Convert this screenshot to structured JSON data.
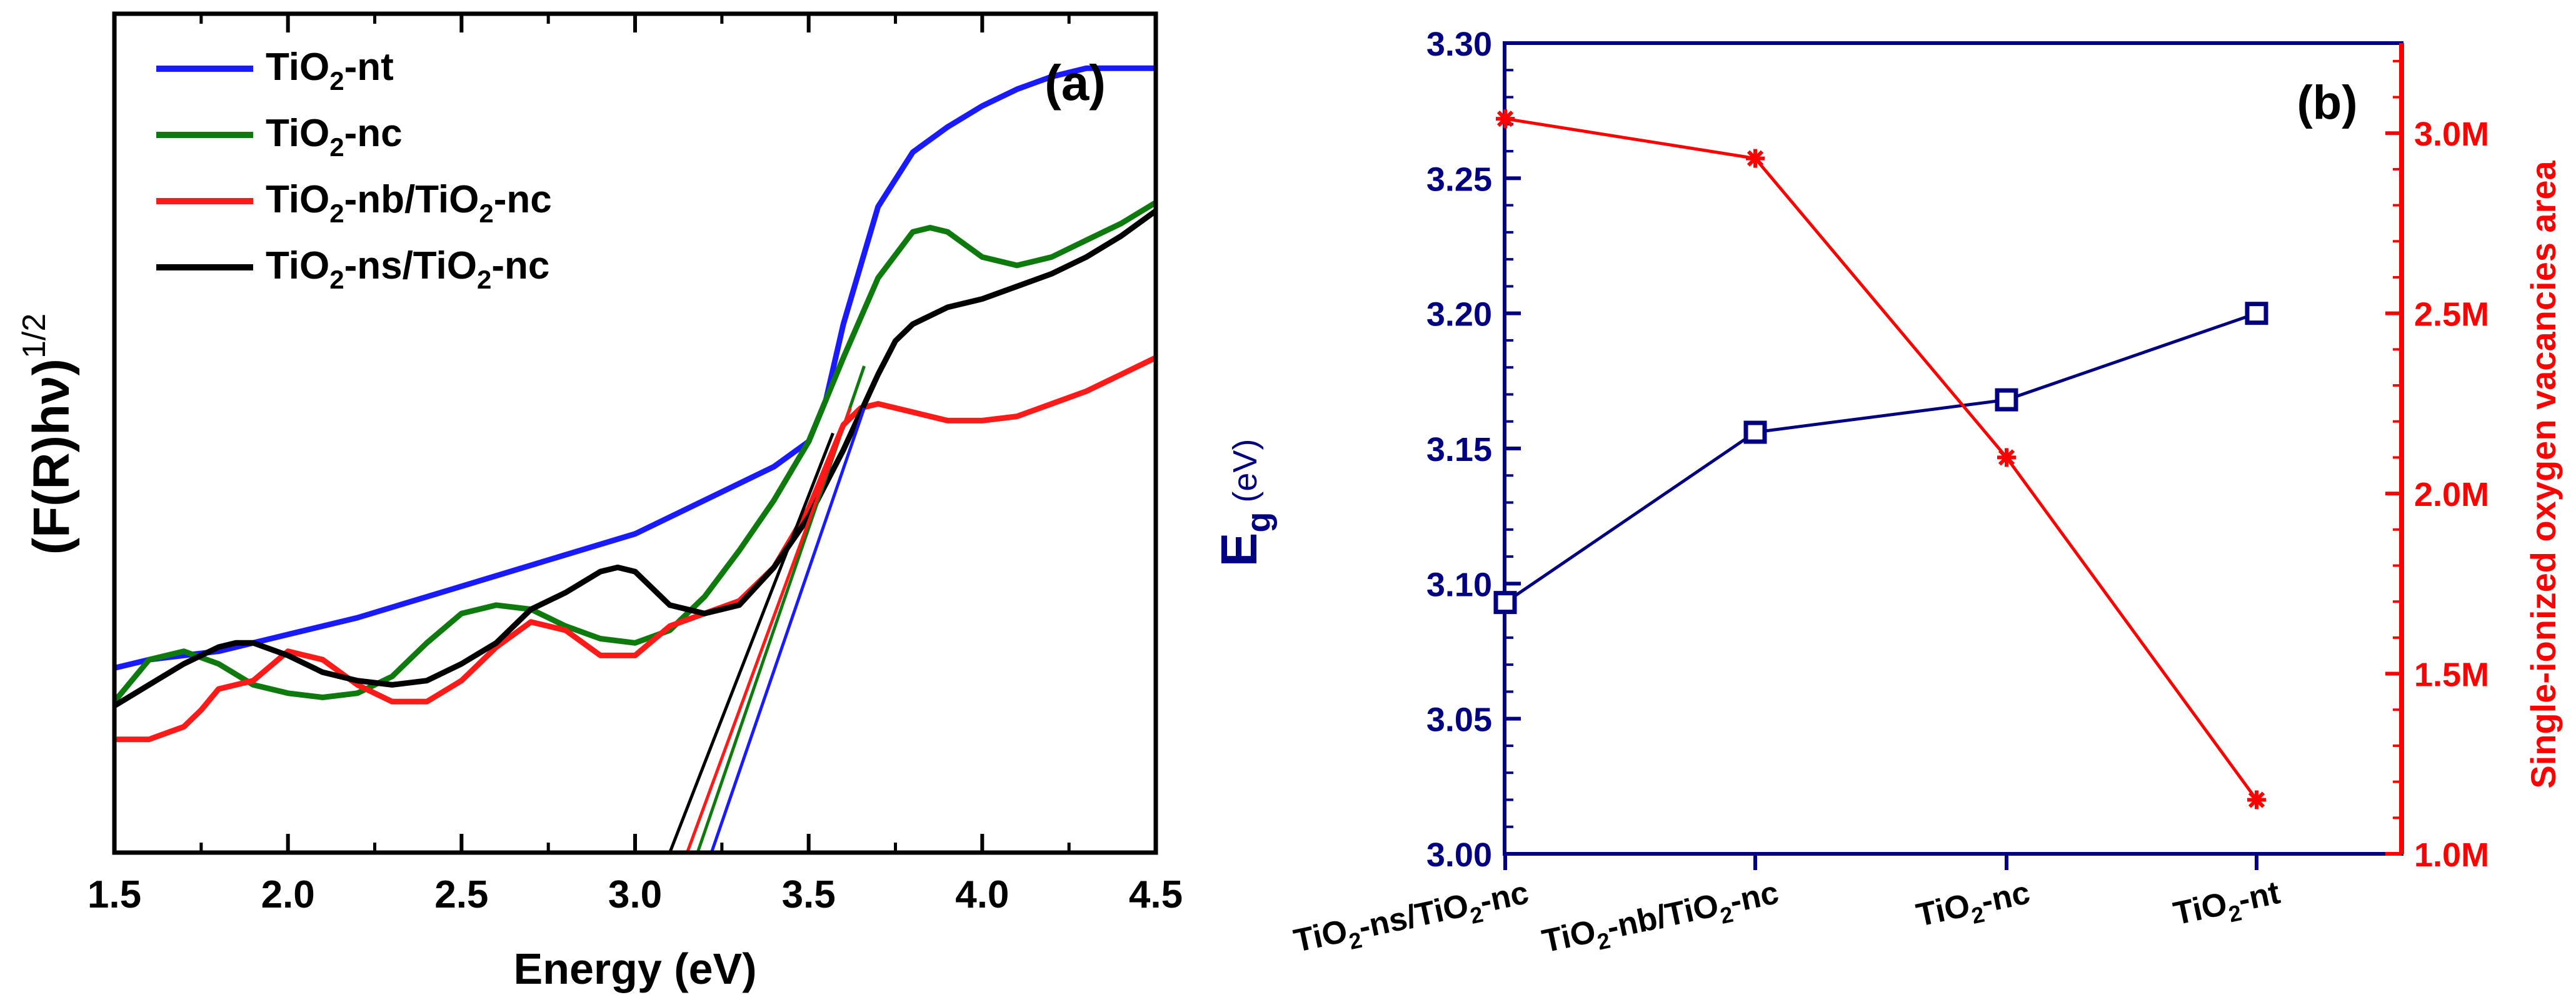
{
  "chart_data": [
    {
      "type": "line",
      "panel_label": "(a)",
      "title": "",
      "xlabel": "Energy (eV)",
      "ylabel": "(F(R)hν)",
      "ylabel_sup": "1/2",
      "xlim": [
        1.5,
        4.5
      ],
      "ylim": [
        0,
        100
      ],
      "x_ticks": [
        "1.5",
        "2.0",
        "2.5",
        "3.0",
        "3.5",
        "4.0",
        "4.5"
      ],
      "legend_position": "top-left",
      "series": [
        {
          "name": "TiO2-nt",
          "label_main": "TiO",
          "label_sub": "2",
          "label_rest": "-nt",
          "color": "#1a1aff",
          "x": [
            1.5,
            1.6,
            1.7,
            1.8,
            1.9,
            2.0,
            2.2,
            2.4,
            2.6,
            2.8,
            3.0,
            3.2,
            3.4,
            3.5,
            3.55,
            3.6,
            3.7,
            3.8,
            3.9,
            4.0,
            4.1,
            4.2,
            4.3,
            4.5
          ],
          "y": [
            22,
            23,
            23.5,
            24,
            25,
            26,
            28,
            30.5,
            33,
            35.5,
            38,
            42,
            46,
            49,
            54,
            63,
            77,
            83.5,
            86.5,
            89,
            91,
            92.5,
            93.5,
            93.5
          ],
          "tangent": {
            "x": [
              3.22,
              3.66
            ],
            "y": [
              0,
              53
            ]
          }
        },
        {
          "name": "TiO2-nc",
          "label_main": "TiO",
          "label_sub": "2",
          "label_rest": "-nc",
          "color": "#0e7a0e",
          "x": [
            1.5,
            1.6,
            1.7,
            1.8,
            1.9,
            2.0,
            2.1,
            2.2,
            2.3,
            2.4,
            2.5,
            2.6,
            2.7,
            2.8,
            2.9,
            3.0,
            3.1,
            3.2,
            3.3,
            3.4,
            3.5,
            3.6,
            3.7,
            3.8,
            3.85,
            3.9,
            4.0,
            4.1,
            4.2,
            4.3,
            4.4,
            4.5
          ],
          "y": [
            18,
            23,
            24,
            22.5,
            20,
            19,
            18.5,
            19,
            21,
            25,
            28.5,
            29.5,
            29,
            27,
            25.5,
            25,
            26.5,
            30.5,
            36,
            42,
            49,
            59,
            68.5,
            74,
            74.5,
            74,
            71,
            70,
            71,
            73,
            75,
            77.5
          ],
          "tangent": {
            "x": [
              3.18,
              3.66
            ],
            "y": [
              0,
              58
            ]
          }
        },
        {
          "name": "TiO2-nb/TiO2-nc",
          "label_main": "TiO",
          "label_sub": "2",
          "label_rest": "-nb/TiO",
          "label_sub2": "2",
          "label_rest2": "-nc",
          "color": "#ff1a1a",
          "x": [
            1.5,
            1.6,
            1.7,
            1.75,
            1.8,
            1.85,
            1.9,
            2.0,
            2.1,
            2.2,
            2.3,
            2.4,
            2.5,
            2.6,
            2.7,
            2.8,
            2.9,
            3.0,
            3.1,
            3.2,
            3.3,
            3.4,
            3.5,
            3.6,
            3.65,
            3.7,
            3.8,
            3.9,
            4.0,
            4.1,
            4.2,
            4.3,
            4.4,
            4.5
          ],
          "y": [
            13.5,
            13.5,
            15,
            17,
            19.5,
            20,
            20.5,
            24,
            23,
            20,
            18,
            18,
            20.5,
            24.5,
            27.5,
            26.5,
            23.5,
            23.5,
            27,
            28.5,
            30,
            34,
            41,
            51,
            53,
            53.5,
            52.5,
            51.5,
            51.5,
            52,
            53.5,
            55,
            57,
            59
          ],
          "tangent": {
            "x": [
              3.15,
              3.62
            ],
            "y": [
              0,
              53
            ]
          }
        },
        {
          "name": "TiO2-ns/TiO2-nc",
          "label_main": "TiO",
          "label_sub": "2",
          "label_rest": "-ns/TiO",
          "label_sub2": "2",
          "label_rest2": "-nc",
          "color": "#000000",
          "x": [
            1.5,
            1.6,
            1.7,
            1.8,
            1.85,
            1.9,
            2.0,
            2.1,
            2.2,
            2.3,
            2.4,
            2.5,
            2.6,
            2.7,
            2.8,
            2.9,
            2.95,
            3.0,
            3.1,
            3.2,
            3.3,
            3.4,
            3.5,
            3.6,
            3.7,
            3.75,
            3.8,
            3.9,
            4.0,
            4.1,
            4.2,
            4.3,
            4.4,
            4.5
          ],
          "y": [
            17.5,
            20,
            22.5,
            24.5,
            25,
            25,
            23.5,
            21.5,
            20.5,
            20,
            20.5,
            22.5,
            25,
            29,
            31,
            33.5,
            34,
            33.5,
            29.5,
            28.5,
            29.5,
            34,
            40,
            48,
            57,
            61,
            63,
            65,
            66,
            67.5,
            69,
            71,
            73.5,
            76.5
          ],
          "tangent": {
            "x": [
              3.1,
              3.57
            ],
            "y": [
              0,
              50
            ]
          }
        }
      ]
    },
    {
      "type": "line",
      "panel_label": "(b)",
      "title": "",
      "xlabel": "",
      "categories": [
        {
          "main": "TiO",
          "sub": "2",
          "rest": "-ns/TiO",
          "sub2": "2",
          "rest2": "-nc"
        },
        {
          "main": "TiO",
          "sub": "2",
          "rest": "-nb/TiO",
          "sub2": "2",
          "rest2": "-nc"
        },
        {
          "main": "TiO",
          "sub": "2",
          "rest": "-nc"
        },
        {
          "main": "TiO",
          "sub": "2",
          "rest": "-nt"
        }
      ],
      "y_left": {
        "label_main": "E",
        "label_sub": "g",
        "label_unit": " (eV)",
        "ylim": [
          3.0,
          3.3
        ],
        "ticks": [
          "3.00",
          "3.05",
          "3.10",
          "3.15",
          "3.20",
          "3.25",
          "3.30"
        ],
        "color": "#000080"
      },
      "y_right": {
        "label": "Single-ionized oxygen vacancies area",
        "ylim": [
          1.0,
          3.25
        ],
        "ticks": [
          "1.0M",
          "1.5M",
          "2.0M",
          "2.5M",
          "3.0M"
        ],
        "color": "#ff0000"
      },
      "series": [
        {
          "name": "Eg",
          "axis": "left",
          "color": "#000080",
          "marker": "square",
          "values": [
            3.093,
            3.156,
            3.168,
            3.2
          ]
        },
        {
          "name": "Single-ionized oxygen vacancies area",
          "axis": "right",
          "color": "#ff0000",
          "marker": "asterisk",
          "values": [
            3.04,
            2.93,
            2.1,
            1.15
          ]
        }
      ]
    }
  ]
}
